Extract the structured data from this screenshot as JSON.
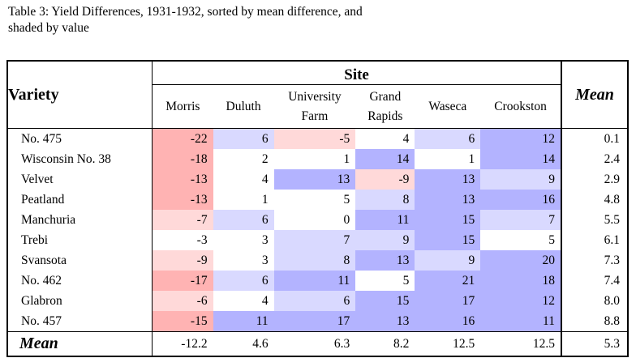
{
  "caption": {
    "line1": "Table 3: Yield Differences, 1931-1932, sorted by mean difference, and",
    "line2": "shaded by value"
  },
  "header": {
    "variety": "Variety",
    "site": "Site",
    "mean": "Mean",
    "sites": [
      {
        "line1": "Morris",
        "line2": ""
      },
      {
        "line1": "Duluth",
        "line2": ""
      },
      {
        "line1": "University",
        "line2": "Farm"
      },
      {
        "line1": "Grand",
        "line2": "Rapids"
      },
      {
        "line1": "Waseca",
        "line2": ""
      },
      {
        "line1": "Crookston",
        "line2": ""
      }
    ]
  },
  "rows": [
    {
      "variety": "No. 475",
      "values": [
        "-22",
        "6",
        "-5",
        "4",
        "6",
        "12"
      ],
      "mean": "0.1"
    },
    {
      "variety": "Wisconsin No. 38",
      "values": [
        "-18",
        "2",
        "1",
        "14",
        "1",
        "14"
      ],
      "mean": "2.4"
    },
    {
      "variety": "Velvet",
      "values": [
        "-13",
        "4",
        "13",
        "-9",
        "13",
        "9"
      ],
      "mean": "2.9"
    },
    {
      "variety": "Peatland",
      "values": [
        "-13",
        "1",
        "5",
        "8",
        "13",
        "16"
      ],
      "mean": "4.8"
    },
    {
      "variety": "Manchuria",
      "values": [
        "-7",
        "6",
        "0",
        "11",
        "15",
        "7"
      ],
      "mean": "5.5"
    },
    {
      "variety": "Trebi",
      "values": [
        "-3",
        "3",
        "7",
        "9",
        "15",
        "5"
      ],
      "mean": "6.1"
    },
    {
      "variety": "Svansota",
      "values": [
        "-9",
        "3",
        "8",
        "13",
        "9",
        "20"
      ],
      "mean": "7.3"
    },
    {
      "variety": "No. 462",
      "values": [
        "-17",
        "6",
        "11",
        "5",
        "21",
        "18"
      ],
      "mean": "7.4"
    },
    {
      "variety": "Glabron",
      "values": [
        "-6",
        "4",
        "6",
        "15",
        "17",
        "12"
      ],
      "mean": "8.0"
    },
    {
      "variety": "No. 457",
      "values": [
        "-15",
        "11",
        "17",
        "13",
        "16",
        "11"
      ],
      "mean": "8.8"
    }
  ],
  "means_row": {
    "label": "Mean",
    "values": [
      "-12.2",
      "4.6",
      "6.3",
      "8.2",
      "12.5",
      "12.5"
    ],
    "overall": "5.3"
  },
  "shading": {
    "strong_negative": "#ffb3b3",
    "light_negative": "#ffd9d9",
    "neutral": "#ffffff",
    "light_positive": "#d9d9ff",
    "strong_positive": "#b3b3ff"
  }
}
